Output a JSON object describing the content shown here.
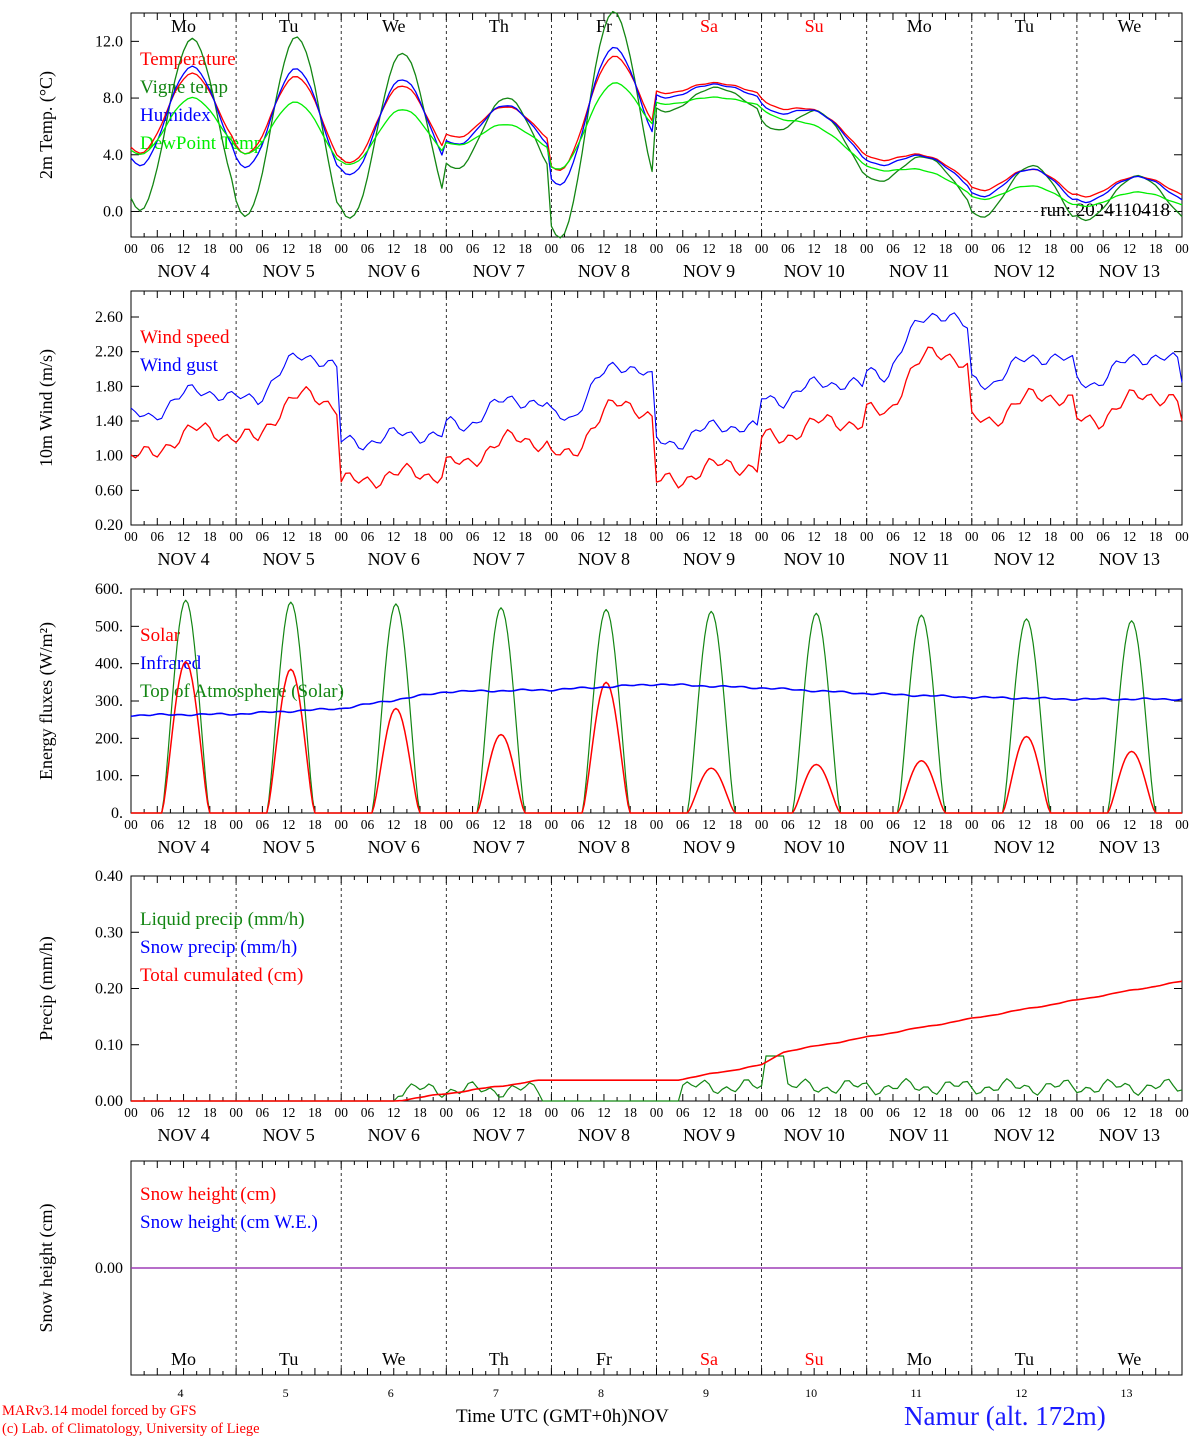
{
  "chart_data": [
    {
      "type": "line",
      "ylabel": "2m Temp. (°C)",
      "yticks": [
        "0.0",
        "4.0",
        "8.0",
        "12.0"
      ],
      "ylim": [
        -1.8,
        14.0
      ],
      "zero_line": true,
      "x_hours": [
        0,
        6,
        12,
        15,
        24,
        30,
        36,
        39,
        48,
        54,
        60,
        63,
        72,
        84,
        96,
        108,
        111,
        120,
        132,
        135,
        144,
        156,
        168,
        180,
        192,
        204,
        216,
        228,
        240
      ],
      "annotation": "run: 2024110418",
      "day_labels_top": [
        {
          "text": "Mo",
          "color": "#000000"
        },
        {
          "text": "Tu",
          "color": "#000000"
        },
        {
          "text": "We",
          "color": "#000000"
        },
        {
          "text": "Th",
          "color": "#000000"
        },
        {
          "text": "Fr",
          "color": "#000000"
        },
        {
          "text": "Sa",
          "color": "#ff0000"
        },
        {
          "text": "Su",
          "color": "#ff0000"
        },
        {
          "text": "Mo",
          "color": "#000000"
        },
        {
          "text": "Tu",
          "color": "#000000"
        },
        {
          "text": "We",
          "color": "#000000"
        }
      ],
      "series": [
        {
          "name": "Temperature",
          "color": "#ff0000"
        },
        {
          "name": "Vigne temp",
          "color": "#138613"
        },
        {
          "name": "Humidex",
          "color": "#0000ff"
        },
        {
          "name": "DewPoint Temp",
          "color": "#00ee00"
        }
      ]
    },
    {
      "type": "line",
      "ylabel": "10m Wind (m/s)",
      "yticks": [
        "0.20",
        "0.60",
        "1.00",
        "1.40",
        "1.80",
        "2.20",
        "2.60"
      ],
      "ylim": [
        0.2,
        2.9
      ],
      "series": [
        {
          "name": "Wind speed",
          "color": "#ff0000"
        },
        {
          "name": "Wind gust",
          "color": "#0000ff"
        }
      ]
    },
    {
      "type": "line",
      "ylabel": "Energy fluxes (W/m²)",
      "yticks": [
        "0.",
        "100.",
        "200.",
        "300.",
        "400.",
        "500.",
        "600."
      ],
      "ylim": [
        0,
        600
      ],
      "series": [
        {
          "name": "Solar",
          "color": "#ff0000",
          "daily_peak": [
            405,
            385,
            280,
            210,
            350,
            120,
            130,
            140,
            205,
            165
          ]
        },
        {
          "name": "Infrared",
          "color": "#0000ff"
        },
        {
          "name": "Top of Atmosphere (Solar)",
          "color": "#138613",
          "daily_peak": [
            570,
            565,
            560,
            550,
            545,
            540,
            535,
            530,
            520,
            515
          ]
        }
      ]
    },
    {
      "type": "line",
      "ylabel": "Precip (mm/h)",
      "yticks": [
        "0.00",
        "0.10",
        "0.20",
        "0.30",
        "0.40"
      ],
      "ylim": [
        0,
        0.4
      ],
      "series": [
        {
          "name": "Liquid precip (mm/h)",
          "color": "#138613"
        },
        {
          "name": "Snow precip (mm/h)",
          "color": "#0000ff"
        },
        {
          "name": "Total cumulated (cm)",
          "color": "#ff0000"
        }
      ]
    },
    {
      "type": "line",
      "ylabel": "Snow height (cm)",
      "yticks": [
        "0.00"
      ],
      "ylim": [
        -1,
        1
      ],
      "day_labels_bottom": [
        {
          "text": "Mo",
          "color": "#000000"
        },
        {
          "text": "Tu",
          "color": "#000000"
        },
        {
          "text": "We",
          "color": "#000000"
        },
        {
          "text": "Th",
          "color": "#000000"
        },
        {
          "text": "Fr",
          "color": "#000000"
        },
        {
          "text": "Sa",
          "color": "#ff0000"
        },
        {
          "text": "Su",
          "color": "#ff0000"
        },
        {
          "text": "Mo",
          "color": "#000000"
        },
        {
          "text": "Tu",
          "color": "#000000"
        },
        {
          "text": "We",
          "color": "#000000"
        }
      ],
      "day_numbers": [
        "4",
        "5",
        "6",
        "7",
        "8",
        "9",
        "10",
        "11",
        "12",
        "13"
      ],
      "series": [
        {
          "name": "Snow height (cm)",
          "color": "#ff0000",
          "values": [
            0.0
          ]
        },
        {
          "name": "Snow height (cm W.E.)",
          "color": "#0000ff",
          "values": [
            0.0
          ]
        }
      ]
    }
  ],
  "x_axis": {
    "hour_ticks": [
      "00",
      "06",
      "12",
      "18"
    ],
    "final_tick": "00",
    "date_labels": [
      "NOV  4",
      "NOV  5",
      "NOV  6",
      "NOV  7",
      "NOV  8",
      "NOV  9",
      "NOV 10",
      "NOV 11",
      "NOV 12",
      "NOV 13"
    ],
    "title": "Time UTC (GMT+0h)",
    "month": "NOV"
  },
  "footer": {
    "credit_line1": "MARv3.14 model forced by GFS",
    "credit_line2": "(c) Lab. of Climatology, University of Liege",
    "station": "Namur (alt. 172m)"
  }
}
